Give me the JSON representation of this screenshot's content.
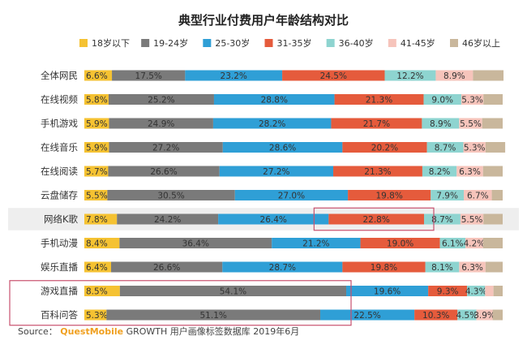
{
  "chart_data": {
    "type": "bar",
    "orientation": "horizontal",
    "stacked": true,
    "title": "典型行业付费用户年龄结构对比",
    "legend_position": "top",
    "categories": [
      "全体网民",
      "在线视频",
      "手机游戏",
      "在线音乐",
      "在线阅读",
      "云盘储存",
      "网络K歌",
      "手机动漫",
      "娱乐直播",
      "游戏直播",
      "百科问答"
    ],
    "series": [
      {
        "name": "18岁以下",
        "color": "#f5c232",
        "values": [
          6.6,
          5.8,
          5.9,
          5.9,
          5.7,
          5.5,
          7.8,
          8.4,
          6.4,
          8.5,
          5.3
        ],
        "labels": [
          "6.6%",
          "5.8%",
          "5.9%",
          "5.9%",
          "5.7%",
          "5.5%",
          "7.8%",
          "8.4%",
          "6.4%",
          "8.5%",
          "5.3%"
        ]
      },
      {
        "name": "19-24岁",
        "color": "#7a7a7a",
        "values": [
          17.5,
          25.2,
          24.9,
          27.2,
          26.6,
          30.5,
          24.2,
          36.4,
          26.6,
          54.1,
          51.1
        ],
        "labels": [
          "17.5%",
          "25.2%",
          "24.9%",
          "27.2%",
          "26.6%",
          "30.5%",
          "24.2%",
          "36.4%",
          "26.6%",
          "54.1%",
          "51.1%"
        ]
      },
      {
        "name": "25-30岁",
        "color": "#2f9fd6",
        "values": [
          23.2,
          28.8,
          28.2,
          28.6,
          27.2,
          27.0,
          26.4,
          21.2,
          28.7,
          19.6,
          22.5
        ],
        "labels": [
          "23.2%",
          "28.8%",
          "28.2%",
          "28.6%",
          "27.2%",
          "27.0%",
          "26.4%",
          "21.2%",
          "28.7%",
          "19.6%",
          "22.5%"
        ]
      },
      {
        "name": "31-35岁",
        "color": "#e55b3c",
        "values": [
          24.5,
          21.3,
          21.7,
          20.2,
          21.3,
          19.8,
          22.8,
          19.0,
          19.8,
          9.3,
          10.3
        ],
        "labels": [
          "24.5%",
          "21.3%",
          "21.7%",
          "20.2%",
          "21.3%",
          "19.8%",
          "22.8%",
          "19.0%",
          "19.8%",
          "9.3%",
          "10.3%"
        ]
      },
      {
        "name": "36-40岁",
        "color": "#8ed4d0",
        "values": [
          12.2,
          9.0,
          8.9,
          8.7,
          8.2,
          7.9,
          8.7,
          6.1,
          8.1,
          4.3,
          4.5
        ],
        "labels": [
          "12.2%",
          "9.0%",
          "8.9%",
          "8.7%",
          "8.2%",
          "7.9%",
          "8.7%",
          "6.1%",
          "8.1%",
          "4.3%",
          "4.5%"
        ]
      },
      {
        "name": "41-45岁",
        "color": "#f6c4bb",
        "values": [
          8.9,
          5.3,
          5.5,
          5.3,
          6.3,
          6.7,
          5.5,
          4.2,
          6.3,
          2.0,
          3.9
        ],
        "labels": [
          "8.9%",
          "5.3%",
          "5.5%",
          "5.3%",
          "6.3%",
          "6.7%",
          "5.5%",
          "4.2%",
          "6.3%",
          "",
          "3.9%"
        ]
      },
      {
        "name": "46岁以上",
        "color": "#c9b79c",
        "values": [
          7.3,
          4.6,
          4.9,
          4.7,
          4.7,
          2.6,
          4.6,
          4.7,
          4.1,
          2.2,
          2.4
        ],
        "labels": [
          "",
          "",
          "",
          "",
          "",
          "",
          "",
          "",
          "",
          "",
          ""
        ]
      }
    ],
    "highlight_rows": [
      "网络K歌"
    ],
    "highlight_segments": [
      {
        "category": "网络K歌",
        "series": "31-35岁"
      }
    ],
    "highlight_groups": [
      [
        "游戏直播",
        "百科问答"
      ]
    ],
    "xlim": [
      0,
      100
    ],
    "grid": false
  },
  "source": {
    "prefix": "Source：",
    "brand": "QuestMobile",
    "rest": " GROWTH 用户画像标签数据库 2019年6月"
  },
  "colors": {
    "title": "#222222",
    "label": "#333333",
    "source_brand": "#f0a020",
    "highlight_box": "#c8516e",
    "row_highlight": "#eeeeee"
  }
}
